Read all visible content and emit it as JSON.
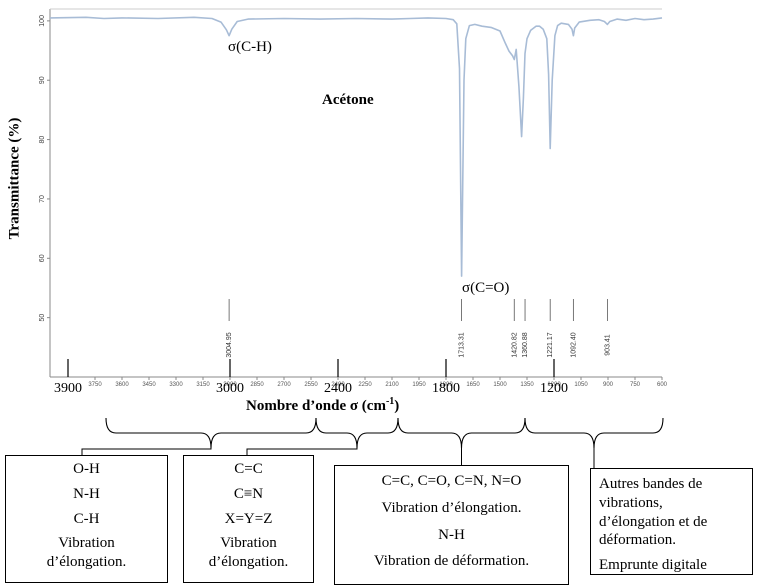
{
  "chart_data": {
    "type": "line",
    "title": "Acétone",
    "xlabel_prefix": "Nombre d’onde σ (cm",
    "xlabel_sup": "-1",
    "xlabel_suffix": ")",
    "ylabel": "Transmittance (%)",
    "xlim": [
      4000,
      600
    ],
    "ylim": [
      40,
      102
    ],
    "yticks": [
      50,
      60,
      70,
      80,
      90,
      100
    ],
    "major_xticks": [
      3900,
      3000,
      2400,
      1800,
      1200
    ],
    "minor_xticks": [
      3750,
      3600,
      3450,
      3300,
      3150,
      3000,
      2850,
      2700,
      2550,
      2400,
      2250,
      2100,
      1950,
      1800,
      1650,
      1500,
      1350,
      1200,
      1050,
      900,
      750,
      600
    ],
    "series": [
      {
        "x": [
          4000,
          3800,
          3700,
          3600,
          3400,
          3200,
          3100,
          3050,
          3020,
          3004.95,
          2990,
          2960,
          2900,
          2700,
          2500,
          2300,
          2100,
          2000,
          1900,
          1800,
          1760,
          1740,
          1725,
          1713.31,
          1700,
          1690,
          1670,
          1640,
          1600,
          1550,
          1500,
          1470,
          1450,
          1430,
          1420.82,
          1410,
          1395,
          1380,
          1370,
          1360.88,
          1350,
          1330,
          1300,
          1280,
          1260,
          1240,
          1230,
          1221.17,
          1210,
          1195,
          1180,
          1160,
          1120,
          1100,
          1092.4,
          1085,
          1060,
          1000,
          950,
          920,
          903.41,
          890,
          850,
          800,
          750,
          700,
          650,
          600
        ],
        "y": [
          100.5,
          100.6,
          100.4,
          100.5,
          100.4,
          100.6,
          100.4,
          99.8,
          98.5,
          97.5,
          98.6,
          99.9,
          100.3,
          100.4,
          100.3,
          100.4,
          100.3,
          100.4,
          100.5,
          100.4,
          100.2,
          99.5,
          92,
          57,
          90,
          97,
          99.2,
          99.4,
          99.1,
          98.9,
          98.3,
          96.2,
          94.9,
          94.1,
          93.5,
          95.2,
          89,
          80.5,
          87,
          94.5,
          97,
          98.4,
          99.1,
          99.1,
          98.6,
          97,
          91,
          78.5,
          90,
          97.5,
          99.2,
          99.6,
          99.4,
          98.6,
          97.5,
          98.8,
          99.8,
          100.1,
          100.2,
          99.9,
          99.4,
          99.9,
          100.3,
          100.1,
          100.4,
          100.2,
          100.3,
          100.5
        ]
      }
    ],
    "peak_labels": [
      "3004.95",
      "1713.31",
      "1420.82",
      "1360.88",
      "1221.17",
      "1092.40",
      "903.41"
    ],
    "peak_positions": [
      3004.95,
      1713.31,
      1420.82,
      1360.88,
      1221.17,
      1092.4,
      903.41
    ],
    "annotations": [
      "σ(C-H)",
      "σ(C=O)"
    ]
  },
  "boxes": {
    "box1": [
      "O-H",
      "N-H",
      "C-H",
      "Vibration",
      "d’élongation."
    ],
    "box2": [
      "C=C",
      "C≡N",
      "X=Y=Z",
      "Vibration",
      "d’élongation."
    ],
    "box3": [
      "C=C, C=O, C=N, N=O",
      "Vibration d’élongation.",
      "N-H",
      "Vibration de déformation."
    ],
    "box4": [
      "Autres bandes de",
      "vibrations,",
      "d’élongation et de",
      "déformation.",
      "Emprunte digitale"
    ]
  },
  "colors": {
    "curve": "#a8bcd6",
    "axis": "#888888",
    "text": "#000000"
  }
}
